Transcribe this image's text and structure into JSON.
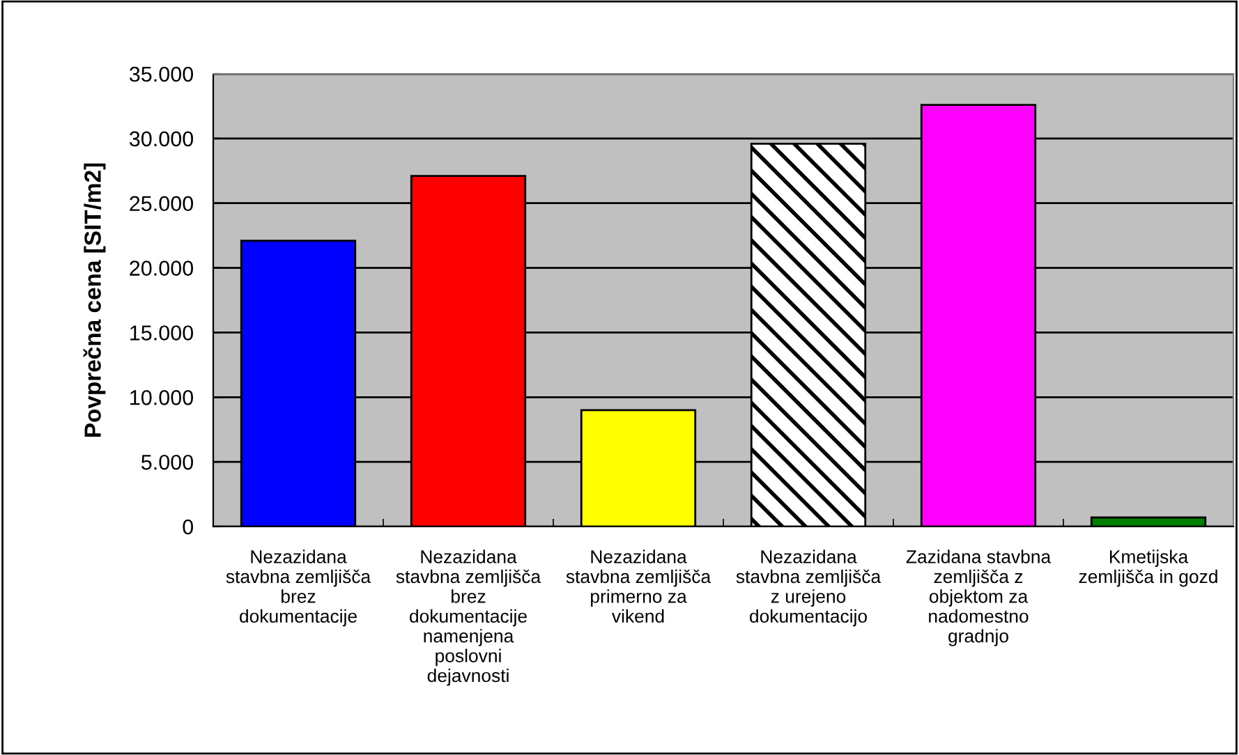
{
  "chart_data": {
    "type": "bar",
    "ylabel": "Povprečna cena [SIT/m2]",
    "categories": [
      "Nezazidana\nstavbna zemljišča\nbrez\ndokumentacije",
      "Nezazidana\nstavbna zemljišča\nbrez\ndokumentacije\nnamenjena\nposlovni\ndejavnosti",
      "Nezazidana\nstavbna zemljišča\nprimerno za\nvikend",
      "Nezazidana\nstavbna zemljišča\nz urejeno\ndokumentacijo",
      "Zazidana stavbna\nzemljišča z\nobjektom za\nnadomestno\ngradnjo",
      "Kmetijska\nzemljišča in gozd"
    ],
    "values": [
      22100,
      27100,
      9000,
      29600,
      32600,
      700
    ],
    "colors": [
      "#0000ff",
      "#ff0000",
      "#ffff00",
      "#ffffff",
      "#ff00ff",
      "#008000"
    ],
    "ylim": [
      0,
      35000
    ],
    "yticks": [
      0,
      {
        "value": 5000,
        "label": "5.000"
      },
      {
        "value": 10000,
        "label": "10.000"
      },
      {
        "value": 15000,
        "label": "15.000"
      },
      {
        "value": 20000,
        "label": "20.000"
      },
      {
        "value": 25000,
        "label": "25.000"
      },
      {
        "value": 30000,
        "label": "30.000"
      },
      {
        "value": 35000,
        "label": "35.000"
      }
    ],
    "grid": "y"
  }
}
